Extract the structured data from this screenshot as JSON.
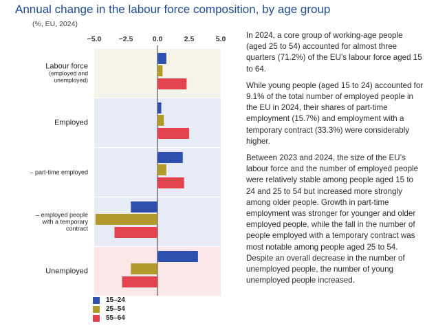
{
  "header": {
    "title": "Annual change in the labour force composition, by age group",
    "subtitle": "(%, EU, 2024)"
  },
  "colors": {
    "title": "#1f4b8f",
    "series_15_24": "#2f4fae",
    "series_25_54": "#b19a2a",
    "series_55_64": "#e2434e",
    "band_beige": "#f6f3e8",
    "band_blue": "#e7ebf6",
    "band_pink": "#fbe7e8"
  },
  "chart_data": {
    "type": "bar",
    "orientation": "horizontal",
    "title": "Annual change in the labour force composition, by age group",
    "subtitle": "(%, EU, 2024)",
    "xlim": [
      -5.0,
      5.0
    ],
    "x_ticks": [
      "−5.0",
      "−2.5",
      "0.0",
      "2.5",
      "5.0"
    ],
    "x_tick_values": [
      -5.0,
      -2.5,
      0.0,
      2.5,
      5.0
    ],
    "legend_position": "bottom-left",
    "categories": [
      {
        "label_lines": [
          "Labour force",
          "(employed and",
          "unemployed)"
        ]
      },
      {
        "label_lines": [
          "Employed"
        ]
      },
      {
        "label_lines": [
          "– part-time employed"
        ]
      },
      {
        "label_lines": [
          "– employed people",
          "with a temporary",
          "contract"
        ]
      },
      {
        "label_lines": [
          "Unemployed"
        ]
      }
    ],
    "series": [
      {
        "name": "15–24",
        "values": [
          0.7,
          0.3,
          2.0,
          -2.1,
          3.2
        ]
      },
      {
        "name": "25–54",
        "values": [
          0.4,
          0.5,
          0.7,
          -4.9,
          -2.1
        ]
      },
      {
        "name": "55–64",
        "values": [
          2.3,
          2.5,
          2.1,
          -3.4,
          -2.8
        ]
      }
    ]
  },
  "text_panel": {
    "paragraphs": [
      "In 2024, a core group of working-age people (aged 25 to 54) accounted for almost three quarters (71.2%) of the EU’s labour force aged 15 to 64.",
      "While young people (aged 15 to 24) accounted for 9.1% of the total number of employed people in the EU in 2024, their shares of part-time employment (15.7%) and employment with a temporary contract (33.3%) were considerably higher.",
      "Between 2023 and 2024, the size of the EU’s labour force and the number of employed people were relatively stable among people aged 15 to 24 and 25 to 54 but increased more strongly among older people. Growth in part-time employment was stronger for younger and older employed people, while the fall in the number of people employed with a temporary contract was most notable among people aged 25 to 54. Despite an overall decrease in the number of unemployed people, the number of young unemployed people increased."
    ]
  }
}
